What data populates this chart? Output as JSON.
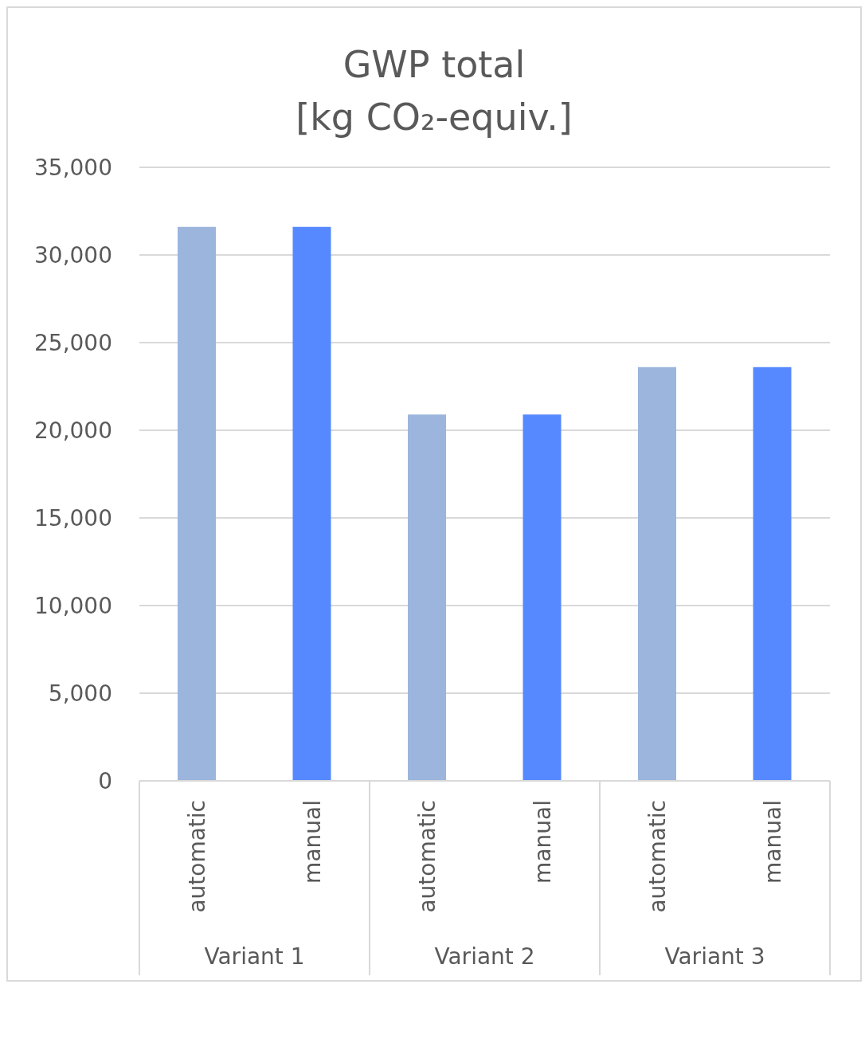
{
  "chart_data": {
    "type": "bar",
    "title": "GWP total",
    "subtitle": "[kg CO₂-equiv.]",
    "categories": [
      "automatic",
      "manual",
      "automatic",
      "manual",
      "automatic",
      "manual"
    ],
    "values": [
      31600,
      31600,
      20900,
      20900,
      23600,
      23600
    ],
    "colors": [
      "#9bb5dd",
      "#5689ff",
      "#9bb5dd",
      "#5689ff",
      "#9bb5dd",
      "#5689ff"
    ],
    "annotations": [
      "Variant 1",
      "Variant 2",
      "Variant 3"
    ],
    "ylim": [
      0,
      35000
    ],
    "yticks": [
      0,
      {
        "value": 5000,
        "label": "5,000"
      },
      {
        "value": 10000,
        "label": "10,000"
      },
      {
        "value": 15000,
        "label": "15,000"
      },
      {
        "value": 20000,
        "label": "20,000"
      },
      {
        "value": 25000,
        "label": "25,000"
      },
      {
        "value": 30000,
        "label": "30,000"
      },
      {
        "value": 35000,
        "label": "35,000"
      }
    ],
    "grid": "y",
    "legend": false
  }
}
